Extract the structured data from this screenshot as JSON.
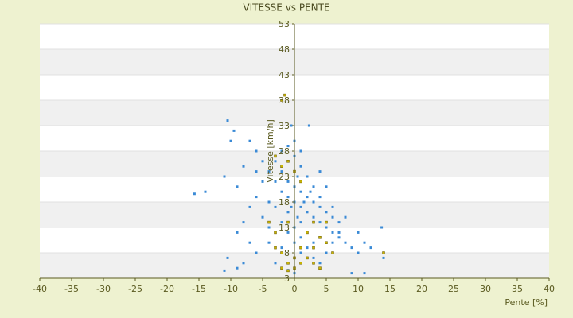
{
  "chart_data": {
    "type": "scatter",
    "title": "VITESSE vs PENTE",
    "x_label": "Pente [%]",
    "y_label": "Vitesse [km/h]",
    "xlim": [
      -40,
      40
    ],
    "xticks": [
      -40,
      -35,
      -30,
      -25,
      -20,
      -15,
      -10,
      -5,
      0,
      5,
      10,
      15,
      20,
      25,
      30,
      35,
      40
    ],
    "ylim": [
      3,
      53
    ],
    "yticks": [
      3,
      8,
      13,
      18,
      23,
      28,
      33,
      38,
      43,
      48,
      53
    ],
    "grid": true,
    "series": [
      {
        "color": "#3a8ad6",
        "x": [
          -15.7,
          -14,
          -10.5,
          -10,
          -9.5,
          -11,
          -9,
          -8,
          -7,
          -6,
          -5,
          -4,
          -3,
          -2,
          -1,
          0,
          1,
          2,
          3,
          4,
          5,
          6,
          7,
          8,
          9,
          10,
          11,
          13.7,
          14,
          -10.5,
          -9,
          -8,
          -6,
          -4,
          -3,
          -2,
          -1,
          0,
          1,
          2,
          3,
          4,
          5,
          6,
          7,
          8,
          6,
          4,
          3,
          2,
          1,
          0,
          -1,
          -2,
          -3,
          -5,
          -6,
          -7,
          -8,
          -9,
          -7,
          -5,
          -4,
          -3,
          -2,
          -1,
          0,
          1,
          2,
          3,
          4,
          5,
          6,
          7,
          1,
          0.5,
          -0.5,
          1.5,
          2.5,
          0.5,
          -0.5,
          2.3,
          -1,
          0,
          1,
          2,
          -2,
          -3,
          -1,
          0,
          9,
          11,
          -11,
          12,
          10,
          3,
          -4,
          -6,
          5,
          4,
          0,
          1
        ],
        "y": [
          19.6,
          20,
          34,
          30,
          32,
          23,
          21,
          25,
          30,
          28,
          26,
          24,
          22,
          20,
          19,
          18,
          17,
          16,
          15,
          14,
          13,
          12,
          11,
          10,
          9,
          8,
          10,
          13,
          7,
          7,
          5,
          6,
          8,
          10,
          12,
          14,
          16,
          13,
          11,
          9,
          7,
          6,
          8,
          10,
          12,
          15,
          17,
          19,
          21,
          23,
          25,
          27,
          29,
          28,
          26,
          22,
          19,
          17,
          14,
          12,
          10,
          15,
          18,
          17,
          24,
          22,
          21,
          20,
          19,
          18,
          17,
          16,
          15,
          14,
          14,
          15,
          17,
          18,
          20,
          23,
          33,
          33,
          12,
          10,
          8,
          12,
          9,
          6,
          4.6,
          4,
          4,
          4,
          4.5,
          9,
          12,
          10,
          13,
          24,
          21,
          24,
          30,
          28
        ]
      },
      {
        "color": "#c8b400",
        "x": [
          -2,
          -1.5,
          -3,
          -2,
          -1,
          0,
          1,
          -4,
          -3,
          -2,
          -1,
          0,
          1,
          2,
          3,
          4,
          5,
          6,
          -2,
          -1,
          14,
          4,
          3,
          -3,
          0,
          1,
          2,
          -1,
          3,
          5
        ],
        "y": [
          38,
          39,
          27,
          25,
          26,
          24,
          22,
          14,
          12,
          8,
          6,
          5,
          6,
          7,
          9,
          11,
          10,
          8,
          5,
          4.5,
          8,
          5,
          6,
          9,
          7,
          9,
          12,
          14,
          14,
          14
        ]
      }
    ]
  }
}
